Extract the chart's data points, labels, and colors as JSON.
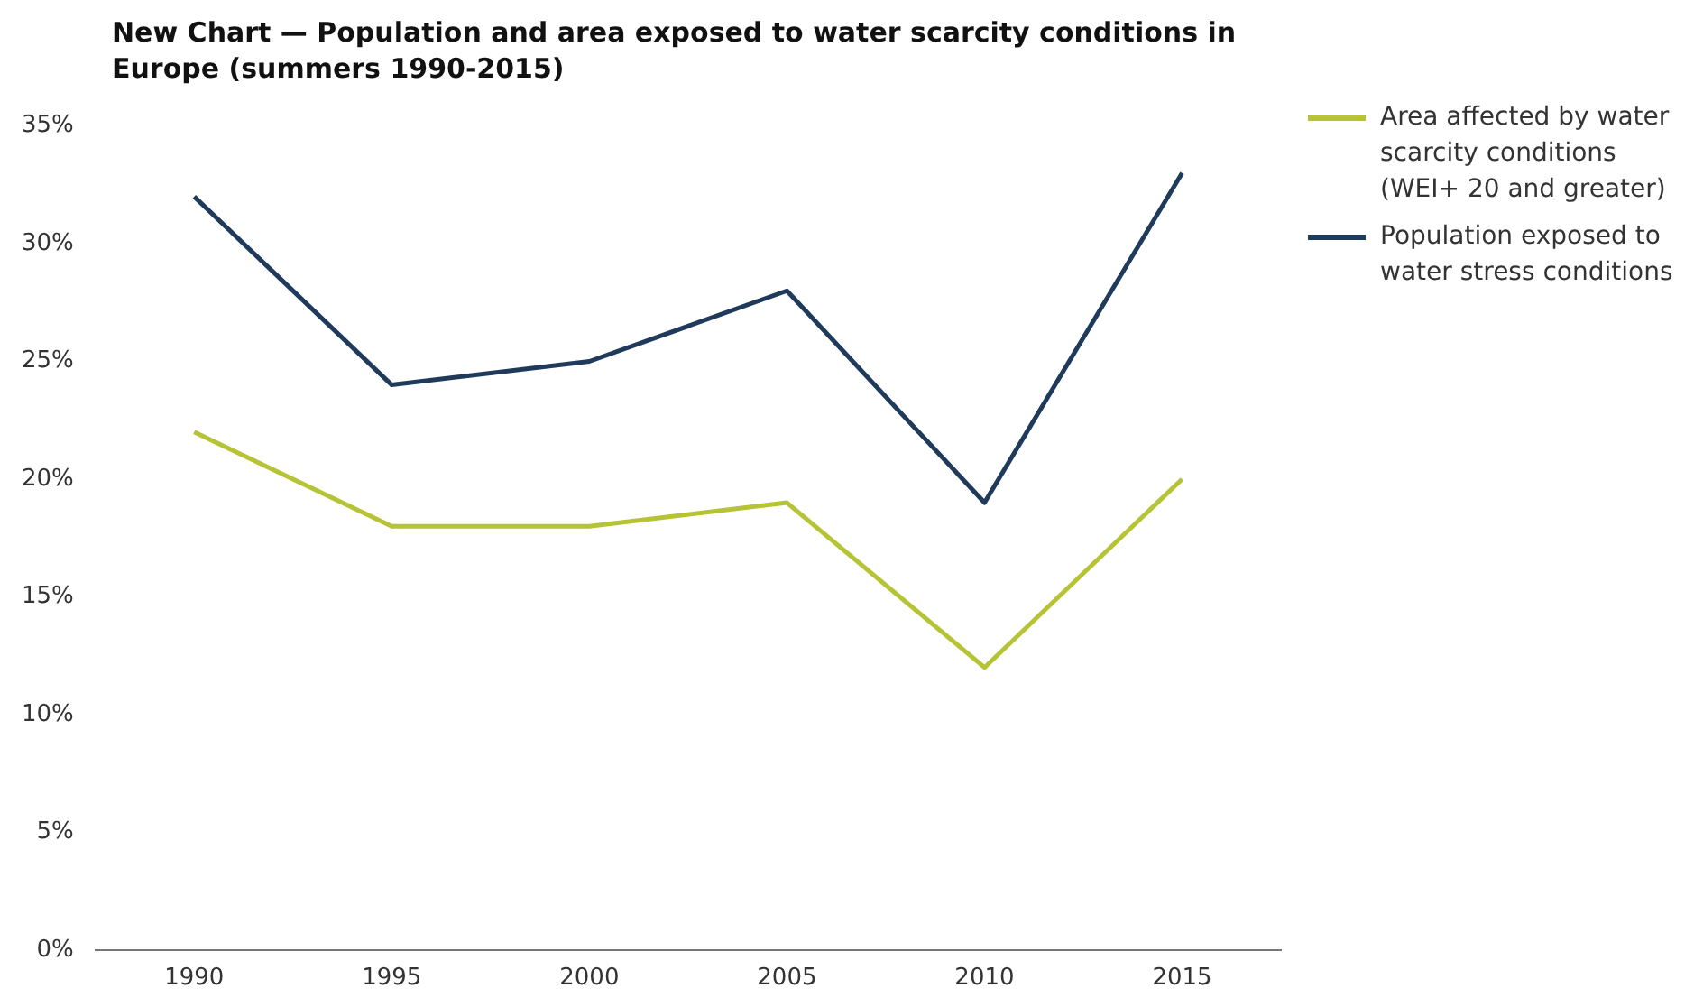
{
  "chart_data": {
    "type": "line",
    "title": "New Chart — Population and area exposed to water scarcity conditions in Europe (summers 1990-2015)",
    "categories": [
      "1990",
      "1995",
      "2000",
      "2005",
      "2010",
      "2015"
    ],
    "series": [
      {
        "name": "Area affected by water scarcity conditions (WEI+ 20 and greater)",
        "color": "#b5c334",
        "values": [
          22,
          18,
          18,
          19,
          12,
          20
        ]
      },
      {
        "name": "Population exposed to water stress conditions",
        "color": "#1f3a5b",
        "values": [
          32,
          24,
          25,
          28,
          19,
          33
        ]
      }
    ],
    "ylim": [
      0,
      35
    ],
    "yticks": [
      {
        "value": 0,
        "label": "0%"
      },
      {
        "value": 5,
        "label": "5%"
      },
      {
        "value": 10,
        "label": "10%"
      },
      {
        "value": 15,
        "label": "15%"
      },
      {
        "value": 20,
        "label": "20%"
      },
      {
        "value": 25,
        "label": "25%"
      },
      {
        "value": 30,
        "label": "30%"
      },
      {
        "value": 35,
        "label": "35%"
      }
    ],
    "grid": false,
    "legend": "top right",
    "marker": "none",
    "line_style": "solid"
  }
}
